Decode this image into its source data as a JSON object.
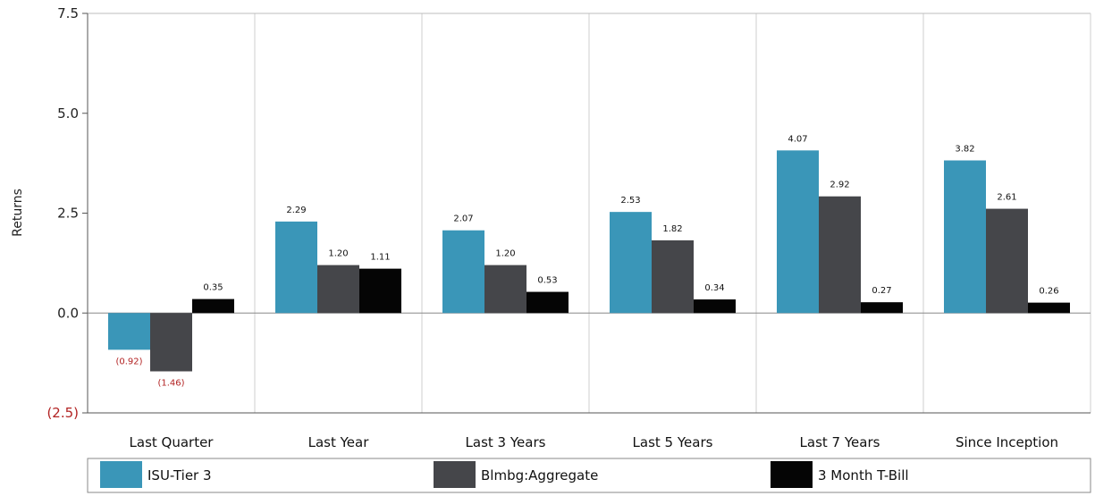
{
  "chart_data": {
    "type": "bar",
    "ylabel": "Returns",
    "ylim": [
      -2.5,
      7.5
    ],
    "yticks": [
      7.5,
      5.0,
      2.5,
      0.0,
      -2.5
    ],
    "ytick_labels": [
      "7.5",
      "5.0",
      "2.5",
      "0.0",
      "(2.5)"
    ],
    "categories": [
      "Last Quarter",
      "Last Year",
      "Last 3 Years",
      "Last 5 Years",
      "Last 7 Years",
      "Since Inception"
    ],
    "series": [
      {
        "name": "ISU-Tier 3",
        "color": "#3a96b8",
        "values": [
          -0.92,
          2.29,
          2.07,
          2.53,
          4.07,
          3.82
        ],
        "labels": [
          "(0.92)",
          "2.29",
          "2.07",
          "2.53",
          "4.07",
          "3.82"
        ]
      },
      {
        "name": "Blmbg:Aggregate",
        "color": "#45464a",
        "values": [
          -1.46,
          1.2,
          1.2,
          1.82,
          2.92,
          2.61
        ],
        "labels": [
          "(1.46)",
          "1.20",
          "1.20",
          "1.82",
          "2.92",
          "2.61"
        ]
      },
      {
        "name": "3 Month T-Bill",
        "color": "#050505",
        "values": [
          0.35,
          1.11,
          0.53,
          0.34,
          0.27,
          0.26
        ],
        "labels": [
          "0.35",
          "1.11",
          "0.53",
          "0.34",
          "0.27",
          "0.26"
        ]
      }
    ],
    "grid": "vertical",
    "legend": "bottom"
  }
}
